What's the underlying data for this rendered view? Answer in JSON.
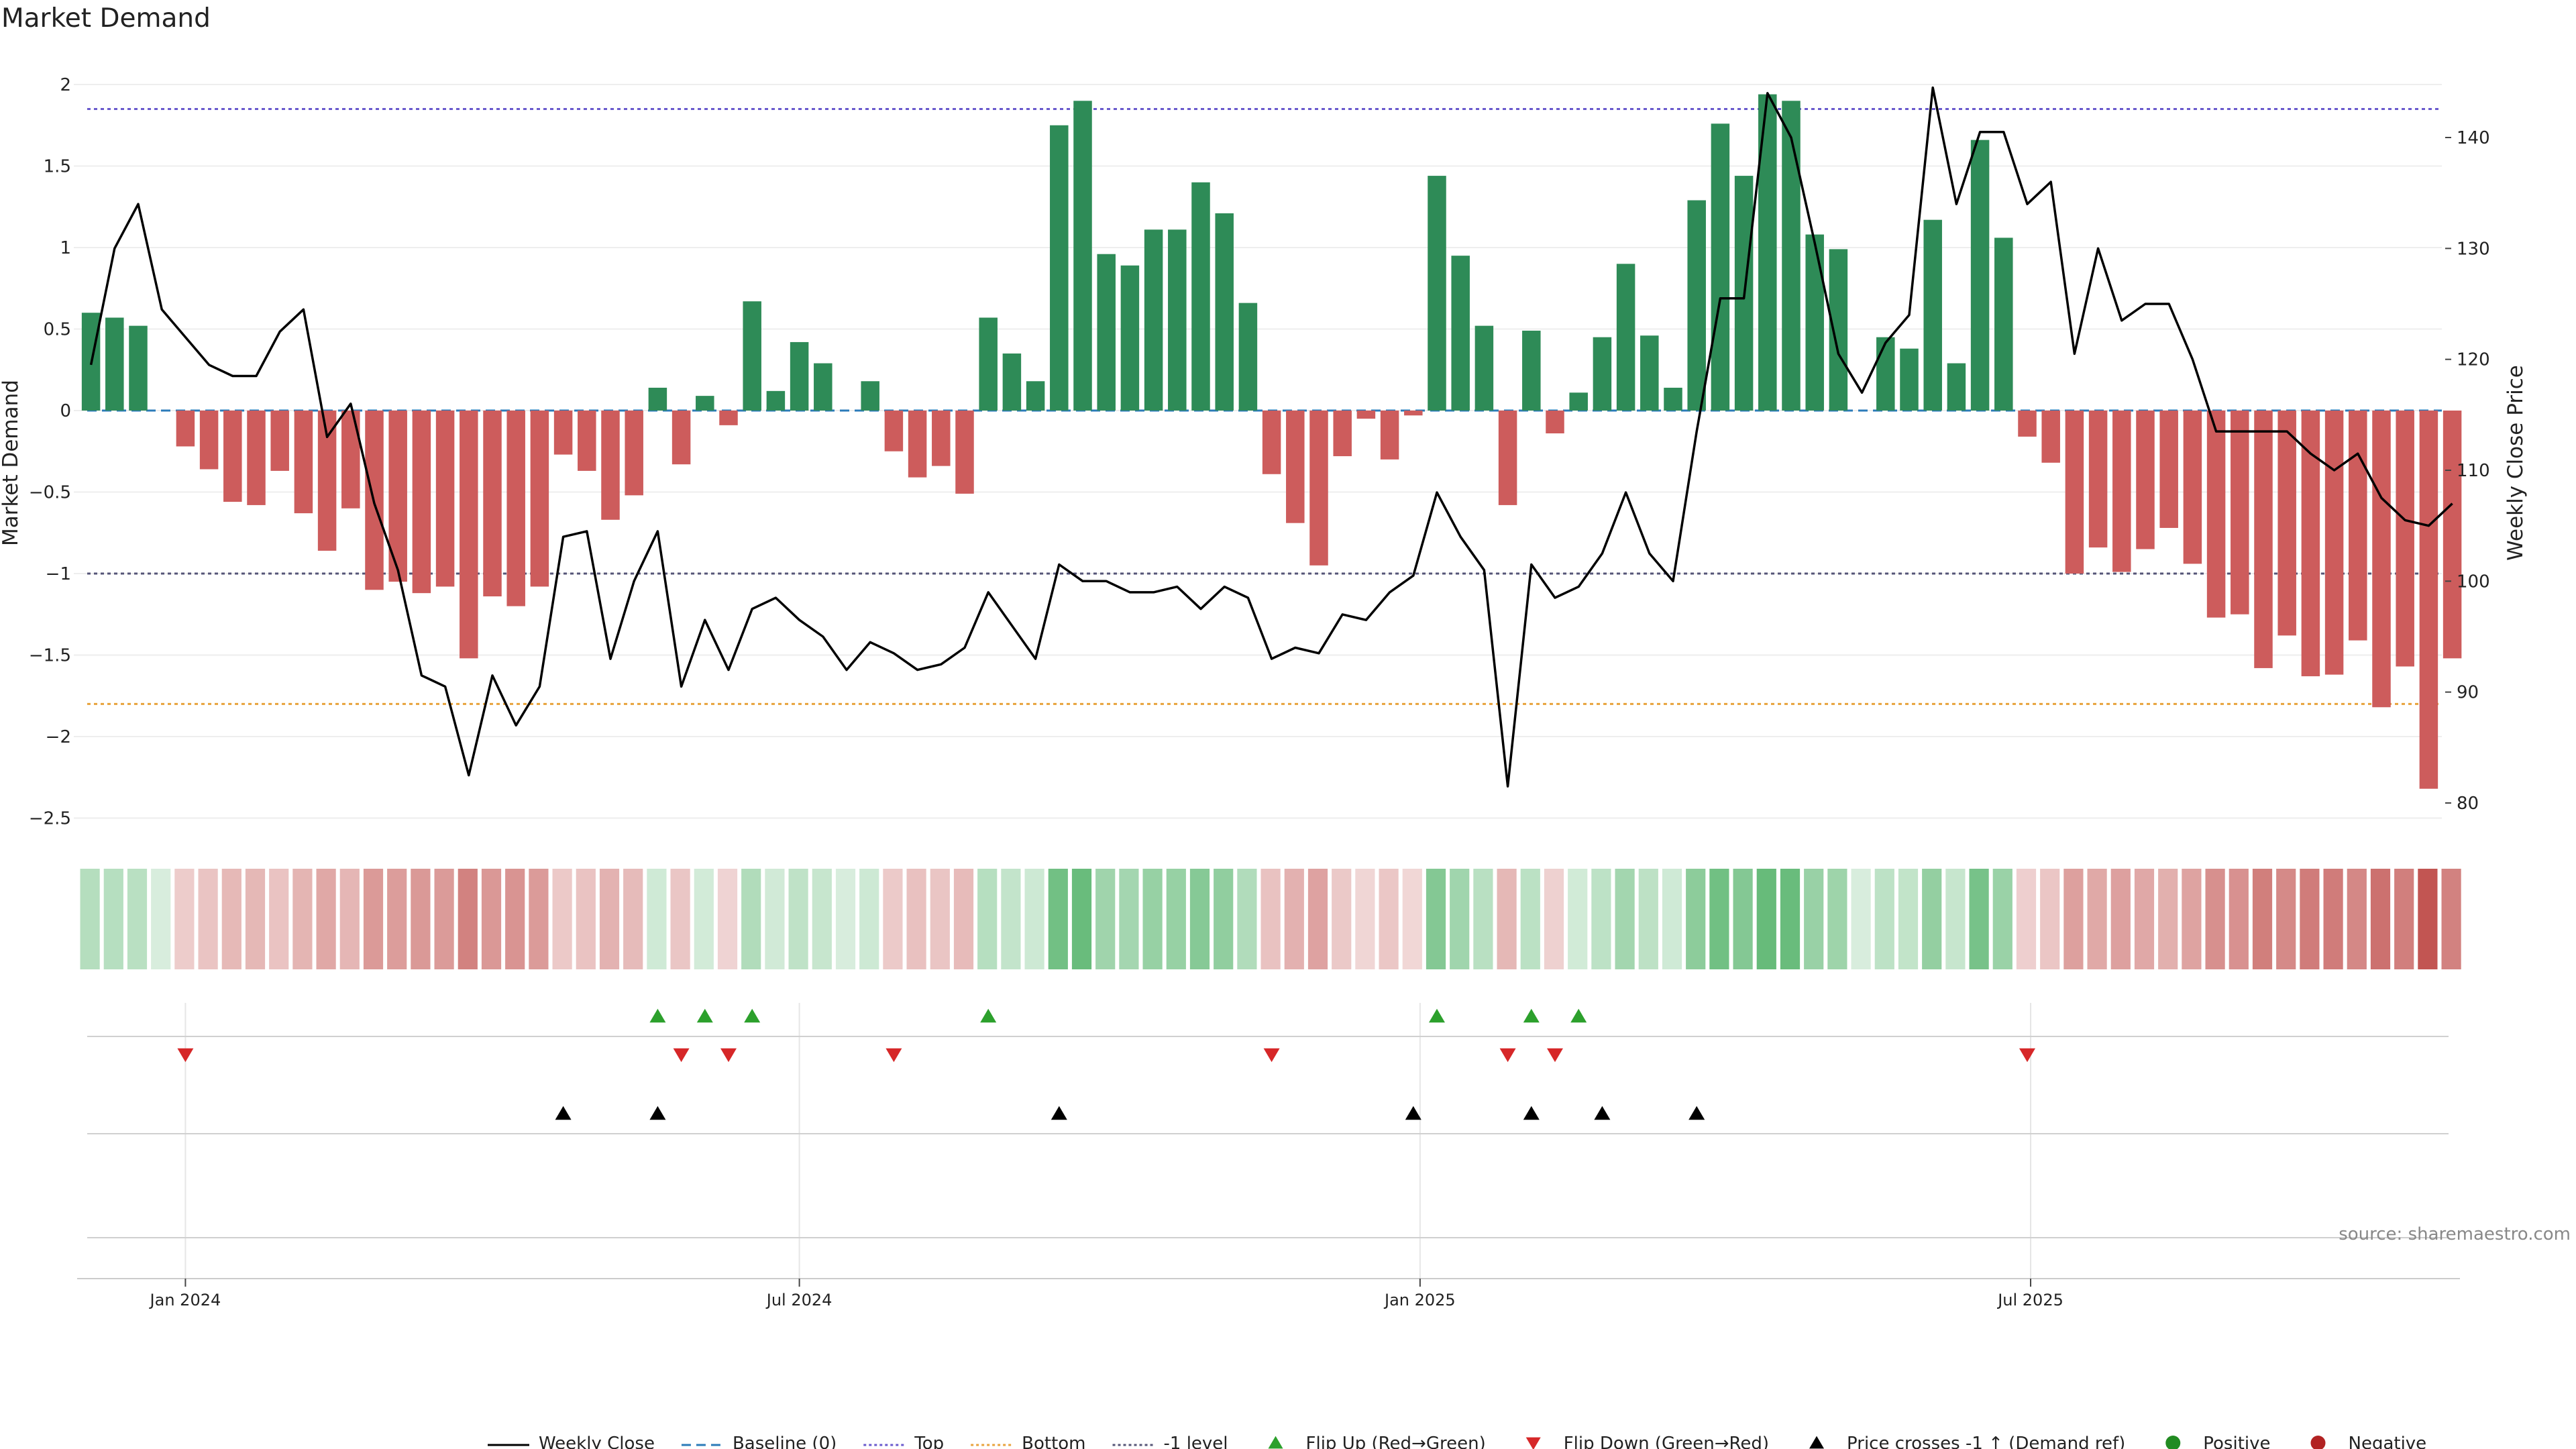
{
  "chart_data": {
    "type": "bar",
    "title": "Market Demand",
    "ylabel": "Market Demand",
    "y2label": "Weekly Close Price",
    "ylim": [
      -2.5,
      2.0
    ],
    "y2lim": [
      80,
      140
    ],
    "yticks": [
      2,
      1.5,
      1,
      0.5,
      0,
      -0.5,
      -1,
      -1.5,
      -2,
      -2.5
    ],
    "ytick_labels": [
      "2",
      "1.5",
      "1",
      "0.5",
      "0",
      "−0.5",
      "−1",
      "−1.5",
      "−2",
      "−2.5"
    ],
    "y2ticks": [
      140,
      130,
      120,
      110,
      100,
      90,
      80
    ],
    "x_date_start": "2023-12-04",
    "x_date_step_weeks": 1,
    "xtick_dates": [
      "2024-01-01",
      "2024-07-01",
      "2025-01-01",
      "2025-07-01"
    ],
    "xtick_labels": [
      "Jan 2024",
      "Jul 2024",
      "Jan 2025",
      "Jul 2025"
    ],
    "levels": {
      "top": 1.85,
      "bottom": -1.8,
      "minus_one": -1.0,
      "baseline": 0
    },
    "colors": {
      "positive": "#2e8b57",
      "negative": "#cd5c5c",
      "top": "#6a5acd",
      "bottom": "#e8a33d",
      "minus_one": "#555577",
      "baseline": "#2b7bb9",
      "flip_up": "#2ca02c",
      "flip_down": "#d62728",
      "price_cross": "#000000",
      "price_line": "#000000"
    },
    "series": [
      {
        "name": "Market Demand",
        "values": [
          0.6,
          0.57,
          0.52,
          0.0,
          -0.22,
          -0.36,
          -0.56,
          -0.58,
          -0.37,
          -0.63,
          -0.86,
          -0.6,
          -1.1,
          -1.05,
          -1.12,
          -1.08,
          -1.52,
          -1.14,
          -1.2,
          -1.08,
          -0.27,
          -0.37,
          -0.67,
          -0.52,
          0.14,
          -0.33,
          0.09,
          -0.09,
          0.67,
          0.12,
          0.42,
          0.29,
          0.0,
          0.18,
          -0.25,
          -0.41,
          -0.34,
          -0.51,
          0.57,
          0.35,
          0.18,
          1.75,
          1.9,
          0.96,
          0.89,
          1.11,
          1.11,
          1.4,
          1.21,
          0.66,
          -0.39,
          -0.69,
          -0.95,
          -0.28,
          -0.05,
          -0.3,
          -0.03,
          1.44,
          0.95,
          0.52,
          -0.58,
          0.49,
          -0.14,
          0.11,
          0.45,
          0.9,
          0.46,
          0.14,
          1.29,
          1.76,
          1.44,
          1.94,
          1.9,
          1.08,
          0.99,
          0.0,
          0.45,
          0.38,
          1.17,
          0.29,
          1.66,
          1.06,
          -0.16,
          -0.32,
          -1.0,
          -0.84,
          -0.99,
          -0.85,
          -0.72,
          -0.94,
          -1.27,
          -1.25,
          -1.58,
          -1.38,
          -1.63,
          -1.62,
          -1.41,
          -1.82,
          -1.57,
          -2.32,
          -1.52
        ]
      },
      {
        "name": "Weekly Close",
        "axis": "right",
        "values": [
          119.5,
          130,
          134,
          124.5,
          122,
          119.5,
          118.5,
          118.5,
          122.5,
          124.5,
          113,
          116,
          107,
          101,
          91.5,
          90.5,
          82.5,
          91.5,
          87,
          90.5,
          104,
          104.5,
          93,
          100,
          104.5,
          90.5,
          96.5,
          92,
          97.5,
          98.5,
          96.5,
          95,
          92,
          94.5,
          93.5,
          92,
          92.5,
          94,
          99,
          96,
          93,
          101.5,
          100,
          100,
          99,
          99,
          99.5,
          97.5,
          99.5,
          98.5,
          93,
          94,
          93.5,
          97,
          96.5,
          99,
          100.5,
          108,
          104,
          101,
          81.5,
          101.5,
          98.5,
          99.5,
          102.5,
          108,
          102.5,
          100,
          113.5,
          125.5,
          125.5,
          144,
          140,
          130.5,
          120.5,
          117,
          121.5,
          124,
          144.5,
          134,
          140.5,
          140.5,
          134,
          136,
          120.5,
          130,
          123.5,
          125,
          125,
          120,
          113.5,
          113.5,
          113.5,
          113.5,
          111.5,
          110,
          111.5,
          107.5,
          105.5,
          105,
          107
        ]
      }
    ],
    "flip_up_weeks": [
      24,
      26,
      28,
      38,
      57,
      61,
      63
    ],
    "flip_down_weeks": [
      4,
      25,
      27,
      34,
      50,
      60,
      62,
      82
    ],
    "price_cross_weeks": [
      20,
      24,
      41,
      56,
      61,
      64,
      68
    ],
    "legend": [
      {
        "kind": "line",
        "label": "Weekly Close",
        "color": "#000000",
        "dash": ""
      },
      {
        "kind": "line",
        "label": "Baseline (0)",
        "color": "#2b7bb9",
        "dash": "14,8"
      },
      {
        "kind": "line",
        "label": "Top",
        "color": "#6a5acd",
        "dash": "4,4"
      },
      {
        "kind": "line",
        "label": "Bottom",
        "color": "#e8a33d",
        "dash": "4,4"
      },
      {
        "kind": "line",
        "label": "-1 level",
        "color": "#555577",
        "dash": "4,4"
      },
      {
        "kind": "tri-up",
        "label": "Flip Up (Red→Green)",
        "color": "#2ca02c"
      },
      {
        "kind": "tri-down",
        "label": "Flip Down (Green→Red)",
        "color": "#d62728"
      },
      {
        "kind": "tri-up",
        "label": "Price crosses -1 ↑ (Demand ref)",
        "color": "#000000"
      },
      {
        "kind": "dot",
        "label": "Positive",
        "color": "#228b22"
      },
      {
        "kind": "dot",
        "label": "Negative",
        "color": "#b22222"
      }
    ],
    "source": "source: sharemaestro.com"
  }
}
